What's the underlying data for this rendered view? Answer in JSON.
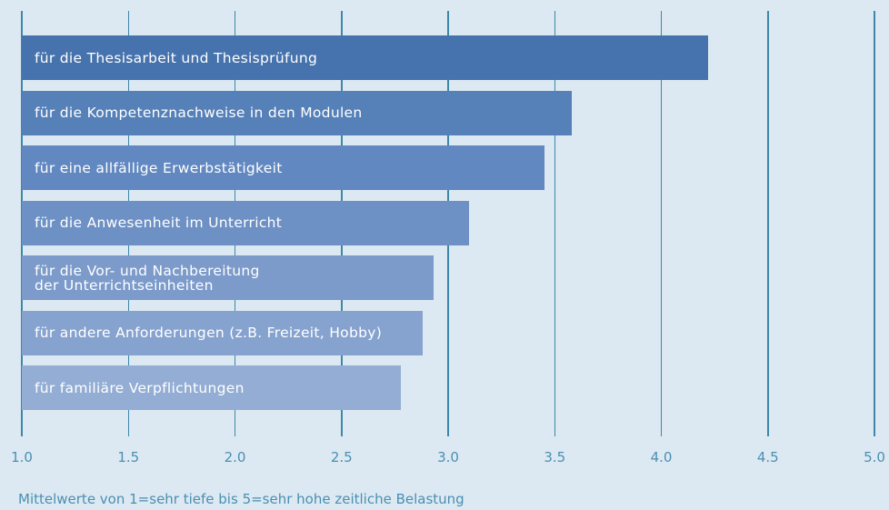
{
  "chart_data": {
    "type": "bar",
    "orientation": "horizontal",
    "x_label": "Mittelwerte von 1=sehr tiefe bis 5=sehr hohe zeitliche Belastung",
    "categories": [
      "für die Thesisarbeit und Thesisprüfung",
      "für die Kompetenznachweise in den Modulen",
      "für eine allfällige Erwerbstätigkeit",
      "für die Anwesenheit im Unterricht",
      "für die Vor- und Nachbereitung\nder Unterrichtseinheiten",
      "für andere Anforderungen (z.B. Freizeit, Hobby)",
      "für familiäre Verpflichtungen"
    ],
    "values": [
      4.22,
      3.58,
      3.45,
      3.1,
      2.93,
      2.88,
      2.78
    ],
    "colors": [
      "#4673ad",
      "#5680b8",
      "#6188c0",
      "#6d91c5",
      "#7c9bca",
      "#86a3cf",
      "#93add4"
    ],
    "xlim": [
      1,
      5
    ],
    "xticks": [
      {
        "value": 1,
        "label": "1.0"
      },
      1.5,
      {
        "value": 2,
        "label": "2.0"
      },
      2.5,
      {
        "value": 3,
        "label": "3.0"
      },
      3.5,
      {
        "value": 4,
        "label": "4.0"
      },
      4.5,
      {
        "value": 5,
        "label": "5.0"
      }
    ],
    "grid": true
  }
}
